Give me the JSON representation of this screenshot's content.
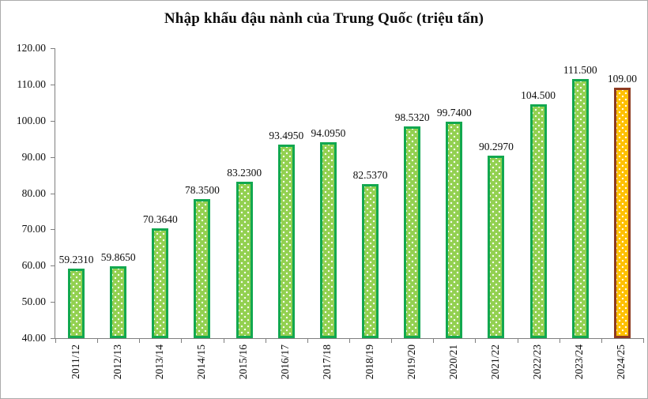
{
  "chart_data": {
    "type": "bar",
    "title": "Nhập khẩu đậu nành của Trung Quốc (triệu tấn)",
    "xlabel": "",
    "ylabel": "",
    "ylim": [
      40,
      120
    ],
    "ytick_step": 10,
    "yticks": [
      "40.00",
      "50.00",
      "60.00",
      "70.00",
      "80.00",
      "90.00",
      "100.00",
      "110.00",
      "120.00"
    ],
    "grid": false,
    "legend": "none",
    "categories": [
      "2011/12",
      "2012/13",
      "2013/14",
      "2014/15",
      "2015/16",
      "2016/17",
      "2017/18",
      "2018/19",
      "2019/20",
      "2020/21",
      "2021/22",
      "2022/23",
      "2023/24",
      "2024/25"
    ],
    "values": [
      59.231,
      59.865,
      70.364,
      78.35,
      83.23,
      93.495,
      94.095,
      82.537,
      98.532,
      99.74,
      90.297,
      104.5,
      111.5,
      109.0
    ],
    "value_labels": [
      "59.2310",
      "59.8650",
      "70.3640",
      "78.3500",
      "83.2300",
      "93.4950",
      "94.0950",
      "82.5370",
      "98.5320",
      "99.7400",
      "90.2970",
      "104.500",
      "111.500",
      "109.00"
    ],
    "highlight_index": 13,
    "colors": {
      "bar_fill": "#92d050",
      "bar_border": "#12a84f",
      "bar_pattern_dots": "#ffffff",
      "highlight_fill": "#ffc000",
      "highlight_border": "#8e3a20",
      "axis": "#7f7f7f",
      "text": "#0d0d0d",
      "frame_border": "#ababab",
      "background": "#ffffff"
    }
  }
}
